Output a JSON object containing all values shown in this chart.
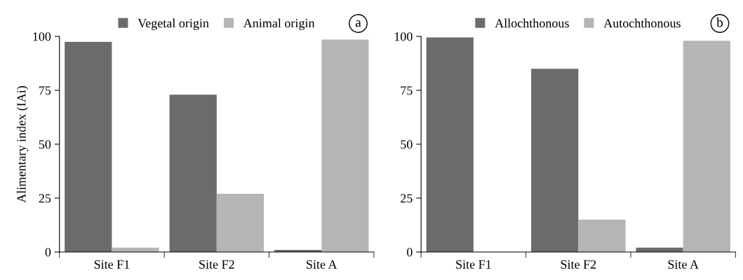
{
  "chart_data": [
    {
      "type": "bar",
      "categories": [
        "Site F1",
        "Site F2",
        "Site A"
      ],
      "ylabel": "Alimentary index (IAi)",
      "ylim": [
        0,
        100
      ],
      "yticks": [
        0,
        25,
        50,
        75,
        100
      ],
      "grid": false,
      "legend": "top",
      "annotations": [
        "a"
      ],
      "series": [
        {
          "name": "Vegetal origin",
          "color": "#6b6b6b",
          "values": [
            97.5,
            73,
            1
          ]
        },
        {
          "name": "Animal origin",
          "color": "#b5b5b5",
          "values": [
            2,
            27,
            98.5
          ]
        }
      ]
    },
    {
      "type": "bar",
      "categories": [
        "Site F1",
        "Site F2",
        "Site A"
      ],
      "ylim": [
        0,
        100
      ],
      "yticks": [
        0,
        25,
        50,
        75,
        100
      ],
      "grid": false,
      "legend": "top",
      "annotations": [
        "b"
      ],
      "series": [
        {
          "name": "Allochthonous",
          "color": "#6b6b6b",
          "values": [
            99.5,
            85,
            2
          ]
        },
        {
          "name": "Autochthonous",
          "color": "#b5b5b5",
          "values": [
            0,
            15,
            98
          ]
        }
      ]
    }
  ]
}
